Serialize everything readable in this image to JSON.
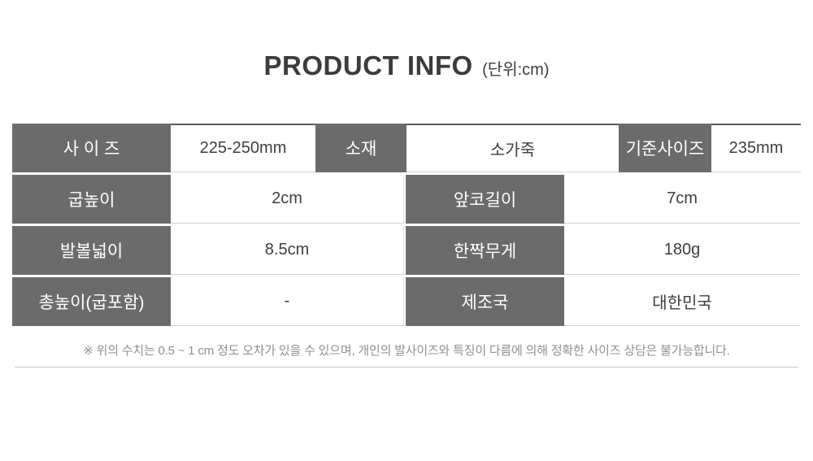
{
  "title": {
    "main": "PRODUCT INFO",
    "unit": "(단위:cm)"
  },
  "table": {
    "row1": {
      "size_label": "사 이 즈",
      "size_value": "225-250mm",
      "material_label": "소재",
      "material_value": "소가죽",
      "base_size_label": "기준사이즈",
      "base_size_value": "235mm"
    },
    "row2": {
      "heel_label": "굽높이",
      "heel_value": "2cm",
      "toe_label": "앞코길이",
      "toe_value": "7cm"
    },
    "row3": {
      "width_label": "발볼넓이",
      "width_value": "8.5cm",
      "weight_label": "한짝무게",
      "weight_value": "180g"
    },
    "row4": {
      "total_height_label": "총높이(굽포함)",
      "total_height_value": "-",
      "origin_label": "제조국",
      "origin_value": "대한민국"
    }
  },
  "note": {
    "text": "※ 위의 수치는 0.5 ~ 1 cm 정도 오차가 있을 수 있으며, 개인의 발사이즈와 특징이 다름에 의해 정확한 사이즈 상담은 불가능합니다."
  },
  "colors": {
    "header_bg": "#6b6b6b",
    "header_text": "#ffffff",
    "value_text": "#3e3e3e",
    "title_text": "#3c3c3c",
    "note_text": "#8f8f8f",
    "border_light": "#d0d0d0",
    "border_dark": "#5c5c5c"
  }
}
